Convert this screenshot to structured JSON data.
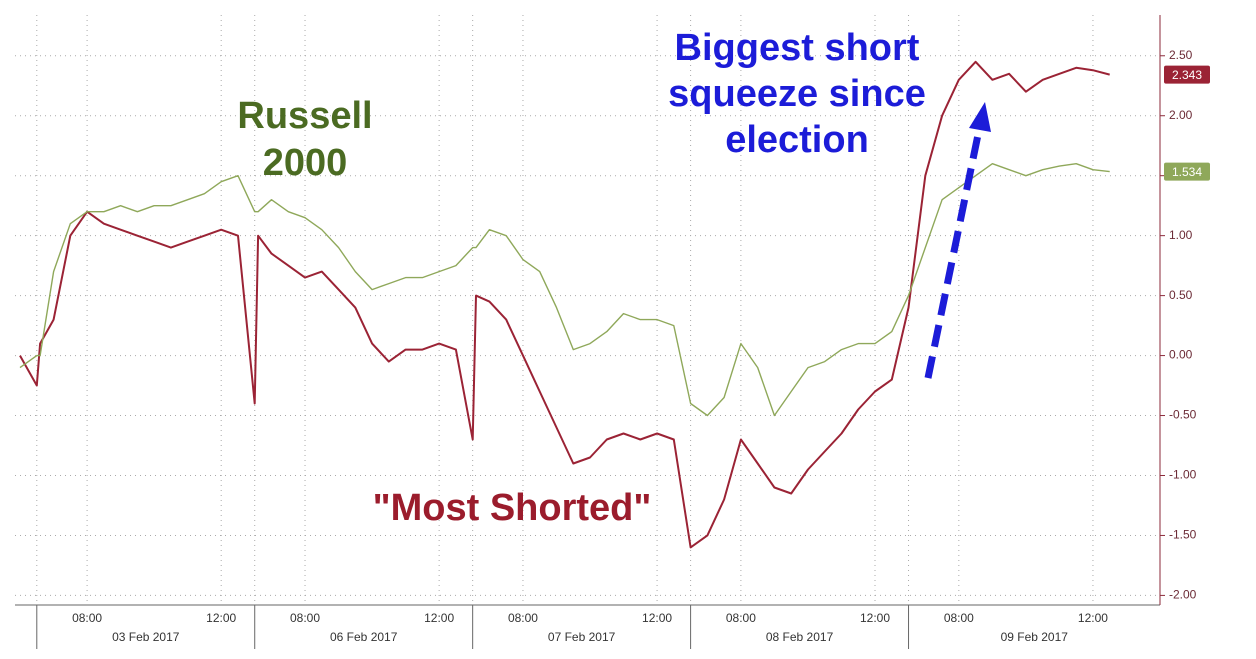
{
  "chart_data": {
    "type": "line",
    "x": [
      -0.5,
      0,
      0.1,
      0.5,
      1,
      1.5,
      2,
      2.5,
      3,
      3.5,
      4,
      4.5,
      5,
      5.5,
      6,
      6.5,
      6.6,
      7,
      7.5,
      8,
      8.5,
      9,
      9.5,
      10,
      10.5,
      11,
      11.5,
      12,
      12.5,
      13,
      13.1,
      13.5,
      14,
      14.5,
      15,
      15.5,
      16,
      16.5,
      17,
      17.5,
      18,
      18.5,
      19,
      19.5,
      20,
      20.5,
      21,
      21.5,
      22,
      22.5,
      23,
      23.5,
      24,
      24.5,
      25,
      25.5,
      26,
      26.5,
      27,
      27.5,
      28,
      28.5,
      29,
      29.5,
      30,
      30.5,
      31,
      31.5,
      32
    ],
    "series": [
      {
        "name": "\"Most Shorted\"",
        "color": "#9b2335",
        "last_label": "2.343",
        "values": [
          0.0,
          -0.25,
          0.1,
          0.3,
          1.0,
          1.2,
          1.1,
          1.05,
          1.0,
          0.95,
          0.9,
          0.95,
          1.0,
          1.05,
          1.0,
          -0.4,
          1.0,
          0.85,
          0.75,
          0.65,
          0.7,
          0.55,
          0.4,
          0.1,
          -0.05,
          0.05,
          0.05,
          0.1,
          0.05,
          -0.7,
          0.5,
          0.45,
          0.3,
          0.0,
          -0.3,
          -0.6,
          -0.9,
          -0.85,
          -0.7,
          -0.65,
          -0.7,
          -0.65,
          -0.7,
          -1.6,
          -1.5,
          -1.2,
          -0.7,
          -0.9,
          -1.1,
          -1.15,
          -0.95,
          -0.8,
          -0.65,
          -0.45,
          -0.3,
          -0.2,
          0.4,
          1.5,
          2.0,
          2.3,
          2.45,
          2.3,
          2.35,
          2.2,
          2.3,
          2.35,
          2.4,
          2.38,
          2.343
        ]
      },
      {
        "name": "Russell 2000",
        "color": "#8fa85a",
        "last_label": "1.534",
        "values": [
          -0.1,
          0.0,
          0.0,
          0.7,
          1.1,
          1.2,
          1.2,
          1.25,
          1.2,
          1.25,
          1.25,
          1.3,
          1.35,
          1.45,
          1.5,
          1.2,
          1.2,
          1.3,
          1.2,
          1.15,
          1.05,
          0.9,
          0.7,
          0.55,
          0.6,
          0.65,
          0.65,
          0.7,
          0.75,
          0.9,
          0.9,
          1.05,
          1.0,
          0.8,
          0.7,
          0.4,
          0.05,
          0.1,
          0.2,
          0.35,
          0.3,
          0.3,
          0.25,
          -0.4,
          -0.5,
          -0.35,
          0.1,
          -0.1,
          -0.5,
          -0.3,
          -0.1,
          -0.05,
          0.05,
          0.1,
          0.1,
          0.2,
          0.5,
          0.9,
          1.3,
          1.4,
          1.5,
          1.6,
          1.55,
          1.5,
          1.55,
          1.58,
          1.6,
          1.55,
          1.534
        ]
      }
    ],
    "xlim": [
      -0.65,
      33.5
    ],
    "xticks": [
      {
        "value": 1.5,
        "label": "08:00"
      },
      {
        "value": 5.5,
        "label": "12:00"
      },
      {
        "value": 8,
        "label": "08:00"
      },
      {
        "value": 12,
        "label": "12:00"
      },
      {
        "value": 14.5,
        "label": "08:00"
      },
      {
        "value": 18.5,
        "label": "12:00"
      },
      {
        "value": 21,
        "label": "08:00"
      },
      {
        "value": 25,
        "label": "12:00"
      },
      {
        "value": 27.5,
        "label": "08:00"
      },
      {
        "value": 31.5,
        "label": "12:00"
      }
    ],
    "x_groups": [
      {
        "label": "03 Feb 2017",
        "start": 0,
        "end": 6.5
      },
      {
        "label": "06 Feb 2017",
        "start": 6.5,
        "end": 13
      },
      {
        "label": "07 Feb 2017",
        "start": 13,
        "end": 19.5
      },
      {
        "label": "08 Feb 2017",
        "start": 19.5,
        "end": 26
      },
      {
        "label": "09 Feb 2017",
        "start": 26,
        "end": 33.5
      }
    ],
    "ylim": [
      -2.08,
      2.84
    ],
    "yticks": [
      {
        "value": -2,
        "label": "-2.00"
      },
      {
        "value": -1.5,
        "label": "-1.50"
      },
      {
        "value": -1,
        "label": "-1.00"
      },
      {
        "value": -0.5,
        "label": "-0.50"
      },
      {
        "value": 0,
        "label": "0.00"
      },
      {
        "value": 0.5,
        "label": "0.50"
      },
      {
        "value": 1,
        "label": "1.00"
      },
      {
        "value": 1.5,
        "label": "1.50"
      },
      {
        "value": 2,
        "label": "2.00"
      },
      {
        "value": 2.5,
        "label": "2.50"
      }
    ],
    "grid": true,
    "annotations": [
      {
        "lines": [
          "Biggest short",
          "squeeze since",
          "election"
        ],
        "color": "#1c1cd8"
      },
      {
        "lines": [
          "Russell",
          "2000"
        ],
        "color": "#4b6b22"
      },
      {
        "lines": [
          "\"Most Shorted\""
        ],
        "color": "#9b1c2c"
      }
    ]
  }
}
